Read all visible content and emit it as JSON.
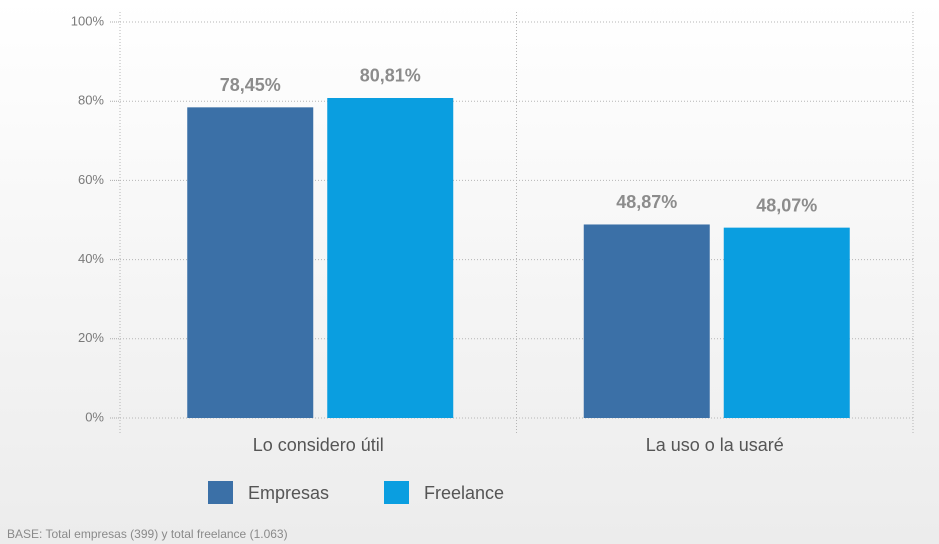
{
  "chart_data": {
    "type": "bar",
    "categories": [
      "Lo considero útil",
      "La uso o la usaré"
    ],
    "series": [
      {
        "name": "Empresas",
        "color": "#3b70a7",
        "values": [
          78.45,
          48.87
        ],
        "value_labels": [
          "78,45%",
          "48,87%"
        ]
      },
      {
        "name": "Freelance",
        "color": "#0a9ee0",
        "values": [
          80.81,
          48.07
        ],
        "value_labels": [
          "80,81%",
          "48,07%"
        ]
      }
    ],
    "ylim": [
      0,
      100
    ],
    "yticks": [
      {
        "value": 0,
        "label": "0%"
      },
      {
        "value": 20,
        "label": "20%"
      },
      {
        "value": 40,
        "label": "40%"
      },
      {
        "value": 60,
        "label": "60%"
      },
      {
        "value": 80,
        "label": "80%"
      },
      {
        "value": 100,
        "label": "100%"
      }
    ],
    "grid": true,
    "legend": "bottom",
    "footnote": "BASE: Total empresas (399) y total freelance (1.063)"
  }
}
